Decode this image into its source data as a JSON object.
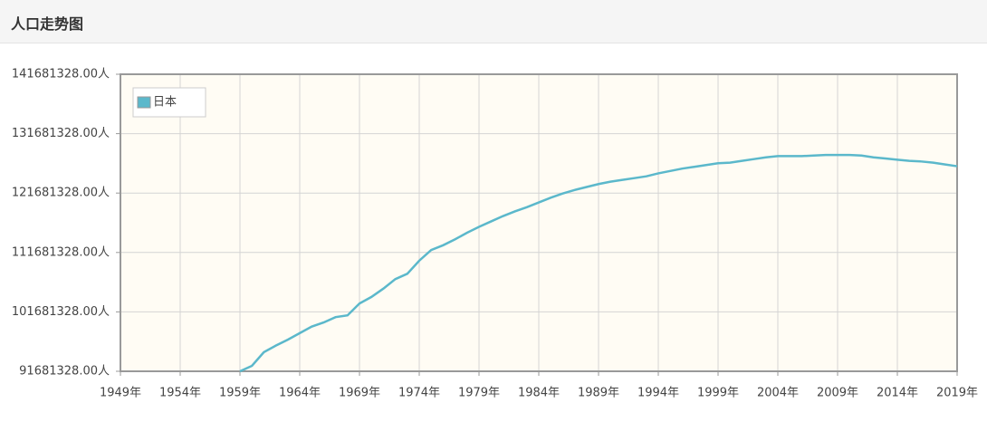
{
  "header": {
    "title": "人口走势图"
  },
  "chart_data": {
    "type": "line",
    "x": [
      1959,
      1960,
      1961,
      1962,
      1963,
      1964,
      1965,
      1966,
      1967,
      1968,
      1969,
      1970,
      1971,
      1972,
      1973,
      1974,
      1975,
      1976,
      1977,
      1978,
      1979,
      1980,
      1981,
      1982,
      1983,
      1984,
      1985,
      1986,
      1987,
      1988,
      1989,
      1990,
      1991,
      1992,
      1993,
      1994,
      1995,
      1996,
      1997,
      1998,
      1999,
      2000,
      2001,
      2002,
      2003,
      2004,
      2005,
      2006,
      2007,
      2008,
      2009,
      2010,
      2011,
      2012,
      2013,
      2014,
      2015,
      2016,
      2017,
      2018,
      2019
    ],
    "series": [
      {
        "name": "日本",
        "color": "#5bb8cb",
        "values": [
          91681328,
          92600000,
          94900000,
          96000000,
          97000000,
          98100000,
          99200000,
          99900000,
          100800000,
          101100000,
          103100000,
          104200000,
          105600000,
          107200000,
          108100000,
          110300000,
          112100000,
          112900000,
          113900000,
          115000000,
          116000000,
          116900000,
          117800000,
          118600000,
          119300000,
          120100000,
          120900000,
          121600000,
          122200000,
          122700000,
          123200000,
          123600000,
          123900000,
          124200000,
          124500000,
          125000000,
          125400000,
          125800000,
          126100000,
          126400000,
          126700000,
          126800000,
          127100000,
          127400000,
          127700000,
          127900000,
          127900000,
          127900000,
          128000000,
          128100000,
          128100000,
          128100000,
          128000000,
          127700000,
          127500000,
          127300000,
          127100000,
          127000000,
          126800000,
          126500000,
          126200000
        ]
      }
    ],
    "xlim": [
      1949,
      2019
    ],
    "xticks": [
      {
        "value": 1949,
        "label": "1949年"
      },
      {
        "value": 1954,
        "label": "1954年"
      },
      {
        "value": 1959,
        "label": "1959年"
      },
      {
        "value": 1964,
        "label": "1964年"
      },
      {
        "value": 1969,
        "label": "1969年"
      },
      {
        "value": 1974,
        "label": "1974年"
      },
      {
        "value": 1979,
        "label": "1979年"
      },
      {
        "value": 1984,
        "label": "1984年"
      },
      {
        "value": 1989,
        "label": "1989年"
      },
      {
        "value": 1994,
        "label": "1994年"
      },
      {
        "value": 1999,
        "label": "1999年"
      },
      {
        "value": 2004,
        "label": "2004年"
      },
      {
        "value": 2009,
        "label": "2009年"
      },
      {
        "value": 2014,
        "label": "2014年"
      },
      {
        "value": 2019,
        "label": "2019年"
      }
    ],
    "ylim": [
      91681328,
      141681328
    ],
    "yticks": [
      {
        "value": 91681328,
        "label": "91681328.00人"
      },
      {
        "value": 101681328,
        "label": "101681328.00人"
      },
      {
        "value": 111681328,
        "label": "111681328.00人"
      },
      {
        "value": 121681328,
        "label": "121681328.00人"
      },
      {
        "value": 131681328,
        "label": "131681328.00人"
      },
      {
        "value": 141681328,
        "label": "141681328.00人"
      }
    ],
    "grid": true,
    "legend": "top-left"
  }
}
